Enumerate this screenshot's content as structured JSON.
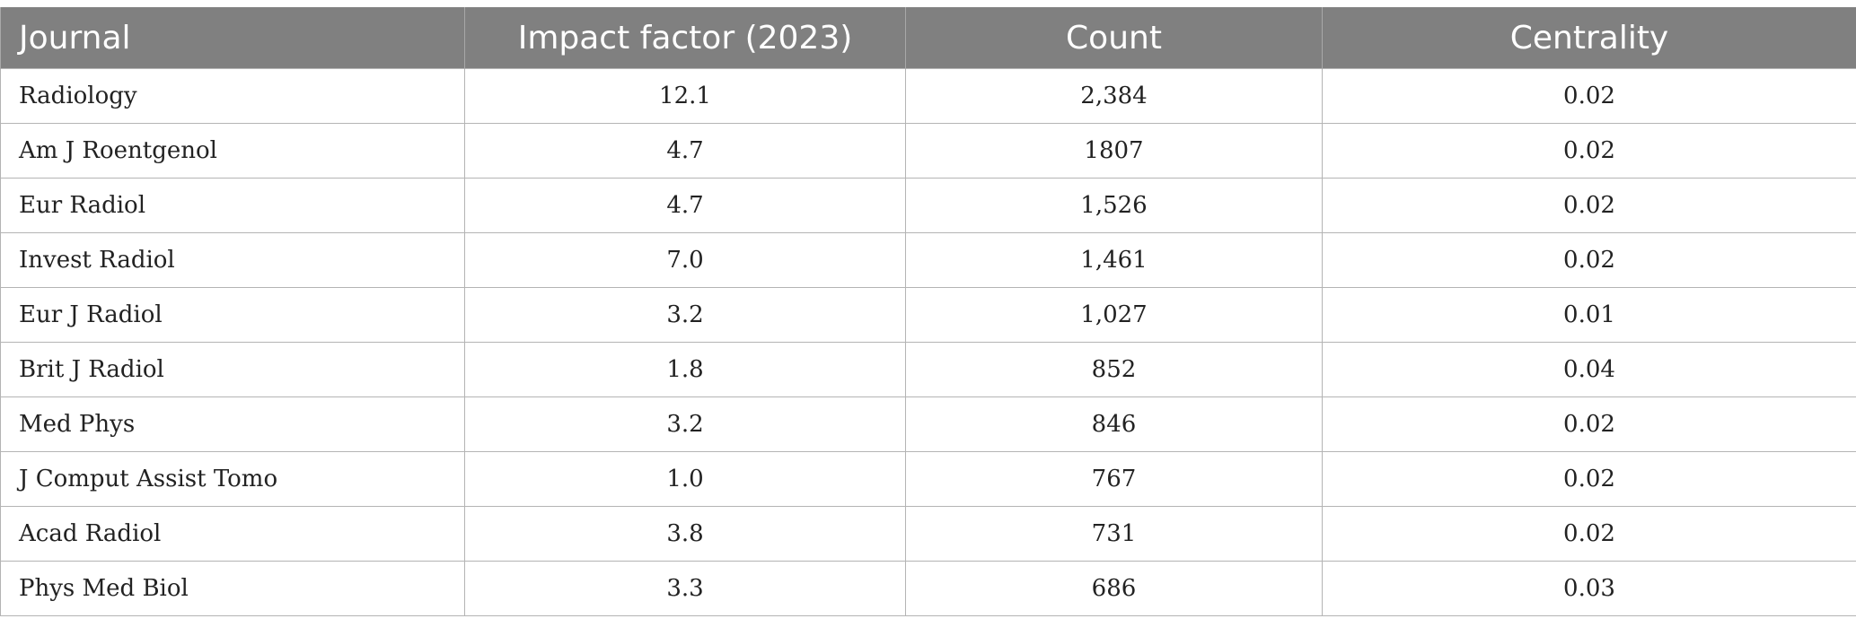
{
  "table": {
    "headers": [
      "Journal",
      "Impact factor (2023)",
      "Count",
      "Centrality"
    ],
    "rows": [
      [
        "Radiology",
        "12.1",
        "2,384",
        "0.02"
      ],
      [
        "Am J Roentgenol",
        "4.7",
        "1807",
        "0.02"
      ],
      [
        "Eur Radiol",
        "4.7",
        "1,526",
        "0.02"
      ],
      [
        "Invest Radiol",
        "7.0",
        "1,461",
        "0.02"
      ],
      [
        "Eur J Radiol",
        "3.2",
        "1,027",
        "0.01"
      ],
      [
        "Brit J Radiol",
        "1.8",
        "852",
        "0.04"
      ],
      [
        "Med Phys",
        "3.2",
        "846",
        "0.02"
      ],
      [
        "J Comput Assist Tomo",
        "1.0",
        "767",
        "0.02"
      ],
      [
        "Acad Radiol",
        "3.8",
        "731",
        "0.02"
      ],
      [
        "Phys Med Biol",
        "3.3",
        "686",
        "0.03"
      ]
    ]
  }
}
